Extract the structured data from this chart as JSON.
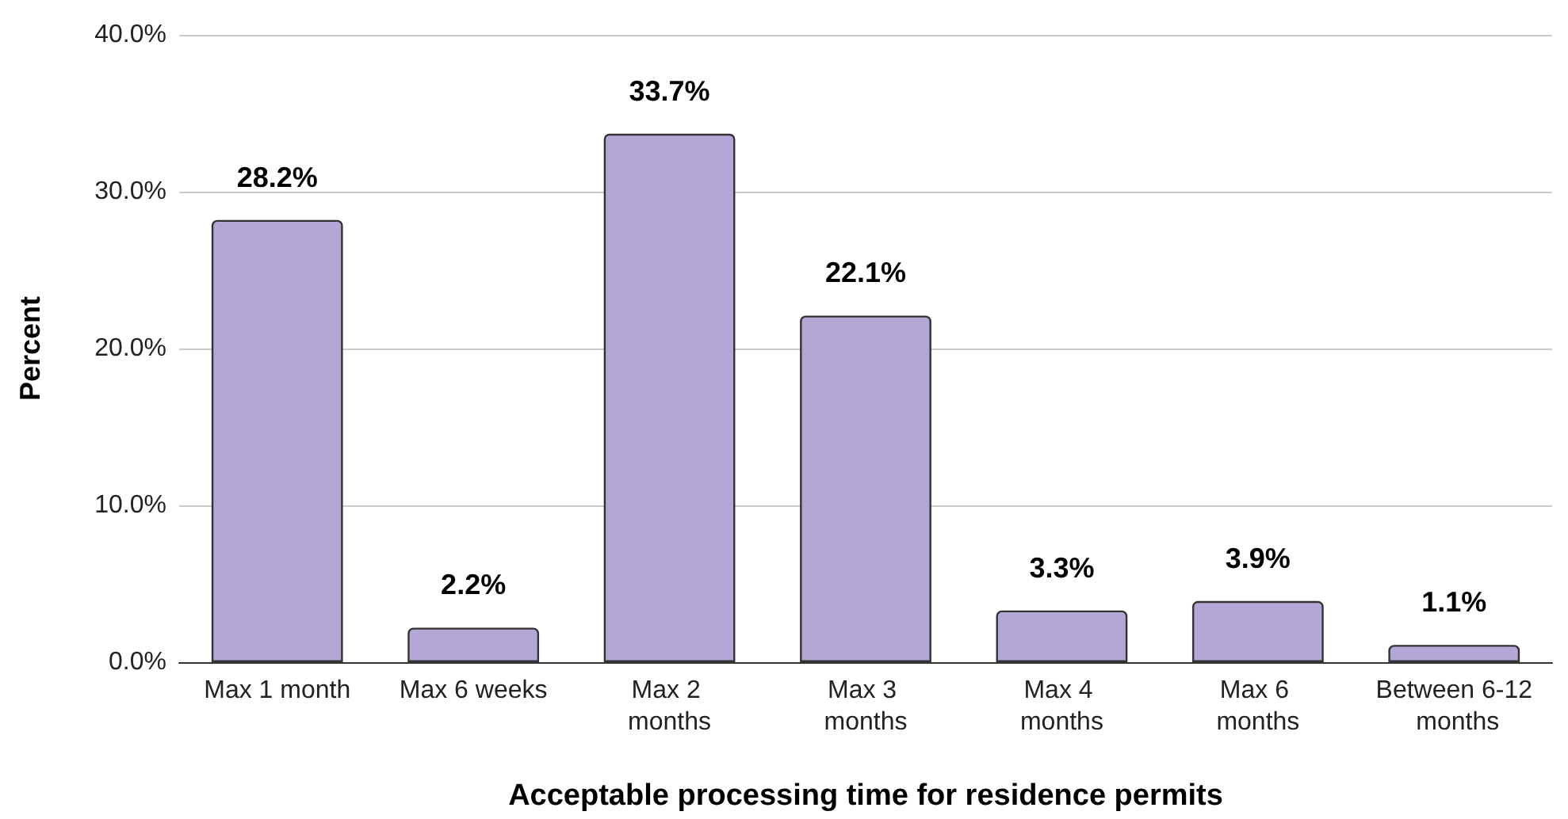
{
  "chart_data": {
    "type": "bar",
    "xlabel": "Acceptable processing time for residence permits",
    "ylabel": "Percent",
    "categories": [
      "Max 1 month",
      "Max 6 weeks",
      "Max 2 months",
      "Max 3 months",
      "Max 4 months",
      "Max 6 months",
      "Between 6-12 months"
    ],
    "values": [
      28.2,
      2.2,
      33.7,
      22.1,
      3.3,
      3.9,
      1.1
    ],
    "value_labels": [
      "28.2%",
      "2.2%",
      "33.7%",
      "22.1%",
      "3.3%",
      "3.9%",
      "1.1%"
    ],
    "color": "#b4a7d6",
    "ylim": [
      0,
      40
    ],
    "yticks": [
      {
        "value": 0,
        "label": "0.0%"
      },
      {
        "value": 10,
        "label": "10.0%"
      },
      {
        "value": 20,
        "label": "20.0%"
      },
      {
        "value": 30,
        "label": "30.0%"
      },
      {
        "value": 40,
        "label": "40.0%"
      }
    ],
    "grid": "y"
  }
}
